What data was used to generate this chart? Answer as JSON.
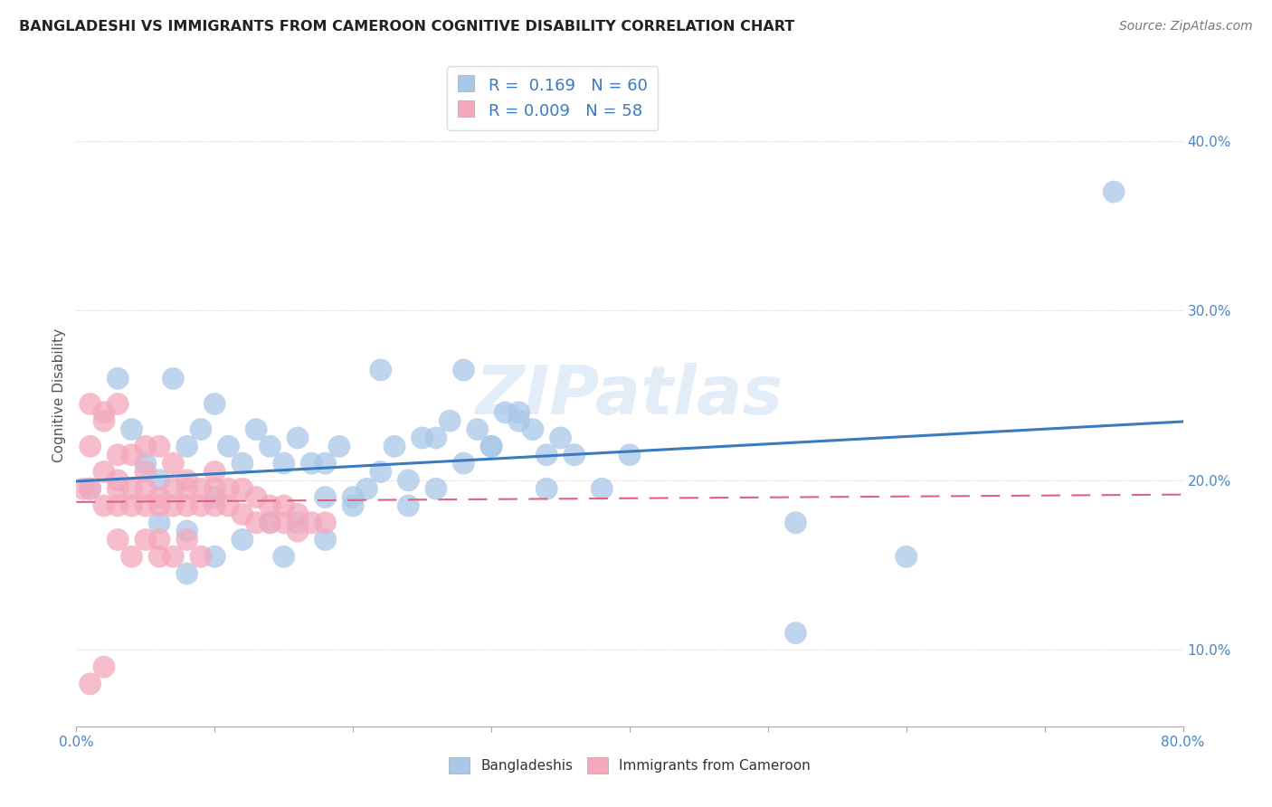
{
  "title": "BANGLADESHI VS IMMIGRANTS FROM CAMEROON COGNITIVE DISABILITY CORRELATION CHART",
  "source": "Source: ZipAtlas.com",
  "ylabel": "Cognitive Disability",
  "watermark": "ZIPatlas",
  "legend_label1": "Bangladeshis",
  "legend_label2": "Immigrants from Cameroon",
  "R1": 0.169,
  "N1": 60,
  "R2": 0.009,
  "N2": 58,
  "color1": "#a8c8e8",
  "color2": "#f4a8bc",
  "line_color1": "#3a7abf",
  "line_color2": "#e06080",
  "xlim": [
    0.0,
    0.8
  ],
  "ylim": [
    0.055,
    0.445
  ],
  "yticks_right": [
    0.1,
    0.2,
    0.3,
    0.4
  ],
  "ytick_labels_right": [
    "10.0%",
    "20.0%",
    "30.0%",
    "40.0%"
  ],
  "xtick_labels": [
    "0.0%",
    "",
    "",
    "",
    "",
    "",
    "",
    "",
    "80.0%"
  ],
  "background_color": "#ffffff",
  "grid_color": "#cccccc",
  "blue_x": [
    0.01,
    0.03,
    0.04,
    0.05,
    0.06,
    0.07,
    0.08,
    0.09,
    0.1,
    0.1,
    0.11,
    0.12,
    0.13,
    0.14,
    0.15,
    0.16,
    0.17,
    0.18,
    0.19,
    0.2,
    0.21,
    0.22,
    0.23,
    0.24,
    0.25,
    0.26,
    0.27,
    0.28,
    0.29,
    0.3,
    0.31,
    0.32,
    0.33,
    0.34,
    0.35,
    0.22,
    0.28,
    0.3,
    0.32,
    0.34,
    0.36,
    0.38,
    0.4,
    0.2,
    0.24,
    0.26,
    0.14,
    0.16,
    0.18,
    0.52,
    0.52,
    0.75,
    0.6,
    0.08,
    0.06,
    0.12,
    0.08,
    0.1,
    0.15,
    0.18
  ],
  "blue_y": [
    0.195,
    0.26,
    0.23,
    0.21,
    0.2,
    0.26,
    0.22,
    0.23,
    0.245,
    0.19,
    0.22,
    0.21,
    0.23,
    0.22,
    0.21,
    0.225,
    0.21,
    0.21,
    0.22,
    0.19,
    0.195,
    0.205,
    0.22,
    0.2,
    0.225,
    0.225,
    0.235,
    0.21,
    0.23,
    0.22,
    0.24,
    0.235,
    0.23,
    0.215,
    0.225,
    0.265,
    0.265,
    0.22,
    0.24,
    0.195,
    0.215,
    0.195,
    0.215,
    0.185,
    0.185,
    0.195,
    0.175,
    0.175,
    0.165,
    0.175,
    0.11,
    0.37,
    0.155,
    0.17,
    0.175,
    0.165,
    0.145,
    0.155,
    0.155,
    0.19
  ],
  "pink_x": [
    0.005,
    0.01,
    0.01,
    0.02,
    0.02,
    0.02,
    0.03,
    0.03,
    0.03,
    0.03,
    0.04,
    0.04,
    0.04,
    0.05,
    0.05,
    0.05,
    0.05,
    0.06,
    0.06,
    0.06,
    0.07,
    0.07,
    0.07,
    0.08,
    0.08,
    0.08,
    0.09,
    0.09,
    0.1,
    0.1,
    0.1,
    0.11,
    0.11,
    0.12,
    0.12,
    0.13,
    0.13,
    0.14,
    0.14,
    0.15,
    0.15,
    0.16,
    0.16,
    0.17,
    0.18,
    0.02,
    0.03,
    0.04,
    0.05,
    0.06,
    0.06,
    0.07,
    0.08,
    0.09,
    0.01,
    0.02,
    0.03,
    0.01
  ],
  "pink_y": [
    0.195,
    0.22,
    0.195,
    0.235,
    0.205,
    0.185,
    0.215,
    0.2,
    0.195,
    0.185,
    0.215,
    0.195,
    0.185,
    0.205,
    0.22,
    0.195,
    0.185,
    0.22,
    0.19,
    0.185,
    0.21,
    0.195,
    0.185,
    0.2,
    0.195,
    0.185,
    0.195,
    0.185,
    0.205,
    0.195,
    0.185,
    0.195,
    0.185,
    0.195,
    0.18,
    0.19,
    0.175,
    0.185,
    0.175,
    0.185,
    0.175,
    0.18,
    0.17,
    0.175,
    0.175,
    0.24,
    0.165,
    0.155,
    0.165,
    0.155,
    0.165,
    0.155,
    0.165,
    0.155,
    0.245,
    0.09,
    0.245,
    0.08
  ]
}
